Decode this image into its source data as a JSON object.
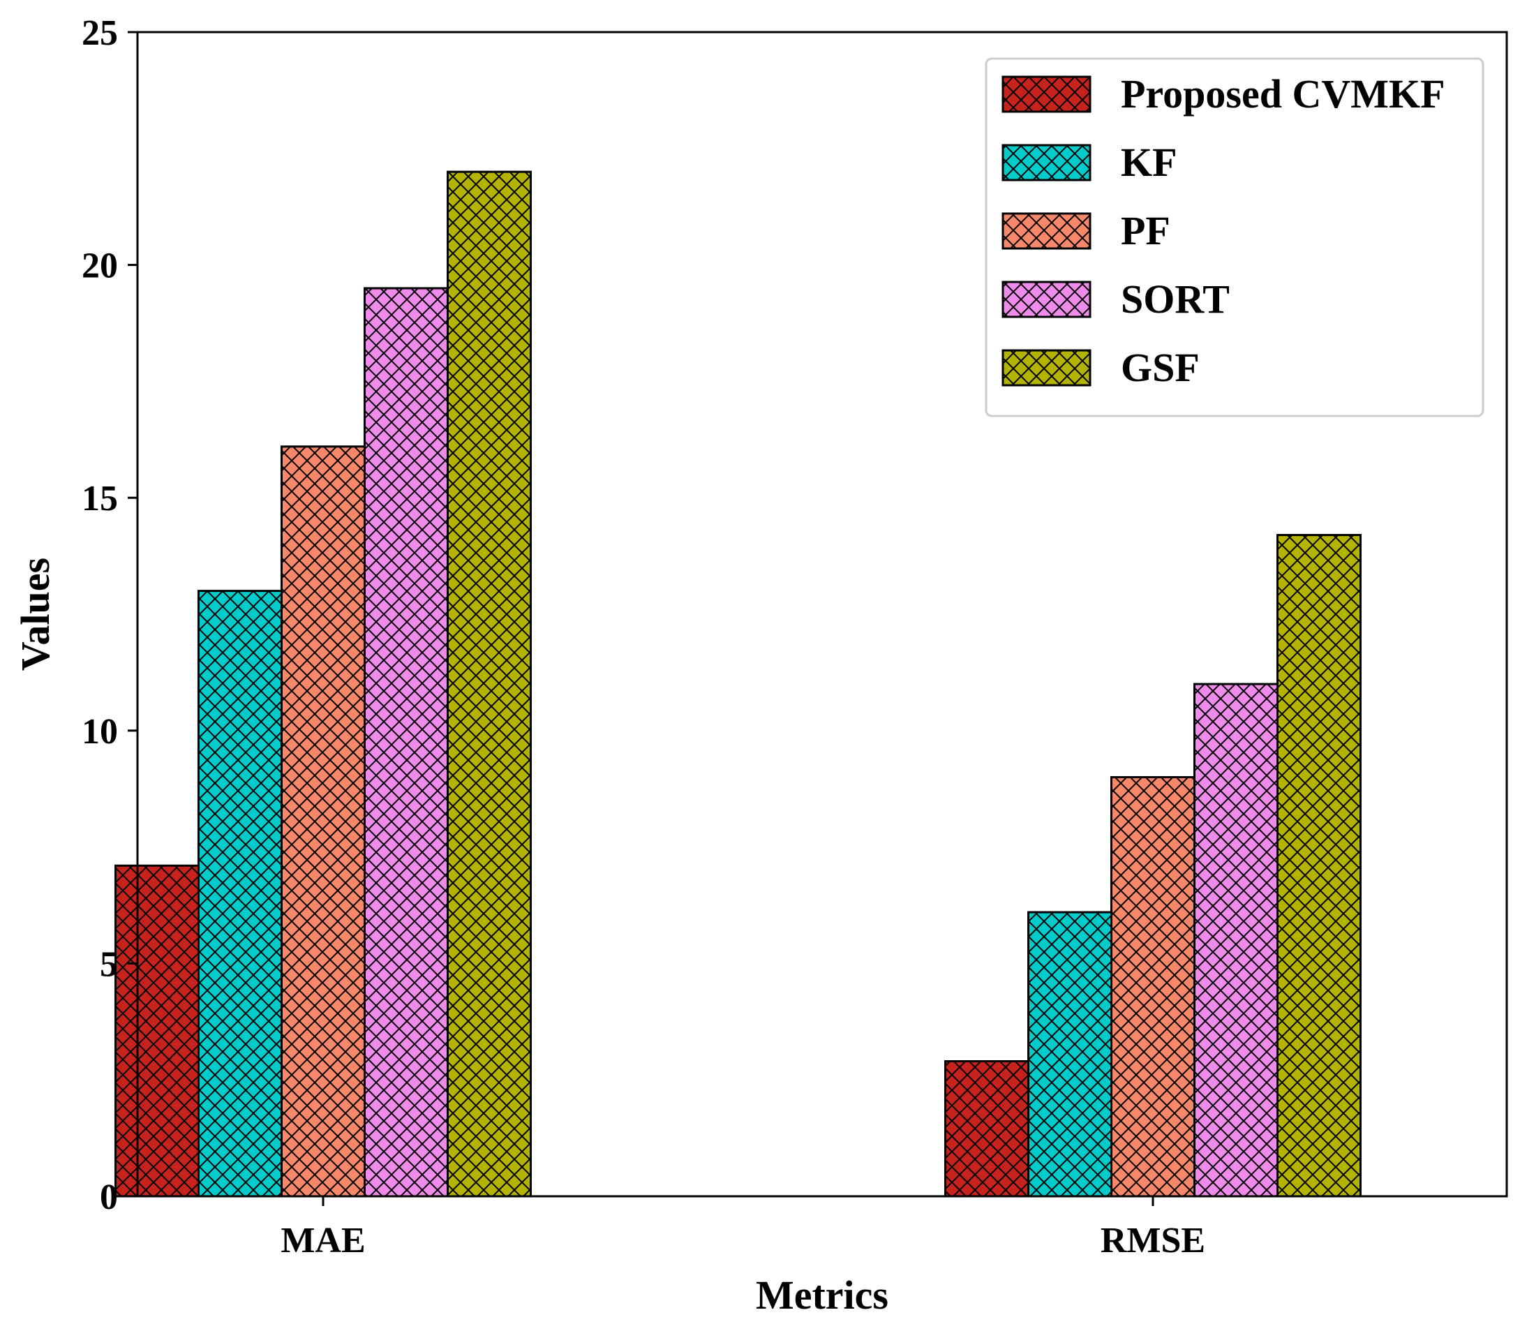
{
  "chart_data": {
    "type": "bar",
    "title": "",
    "xlabel": "Metrics",
    "ylabel": "Values",
    "categories": [
      "MAE",
      "RMSE"
    ],
    "ylim": [
      0,
      25
    ],
    "yticks": [
      0,
      5,
      10,
      15,
      20,
      25
    ],
    "grid": false,
    "legend_position": "top-right",
    "hatch": "cross-hatch",
    "series": [
      {
        "name": "Proposed CVMKF",
        "color": "#c8221d",
        "values": [
          7.1,
          2.9
        ]
      },
      {
        "name": "KF",
        "color": "#00cccc",
        "values": [
          13.0,
          6.1
        ]
      },
      {
        "name": "PF",
        "color": "#f9876a",
        "values": [
          16.1,
          9.0
        ]
      },
      {
        "name": "SORT",
        "color": "#ef8bea",
        "values": [
          19.5,
          11.0
        ]
      },
      {
        "name": "GSF",
        "color": "#b3b300",
        "values": [
          22.0,
          14.2
        ]
      }
    ]
  }
}
